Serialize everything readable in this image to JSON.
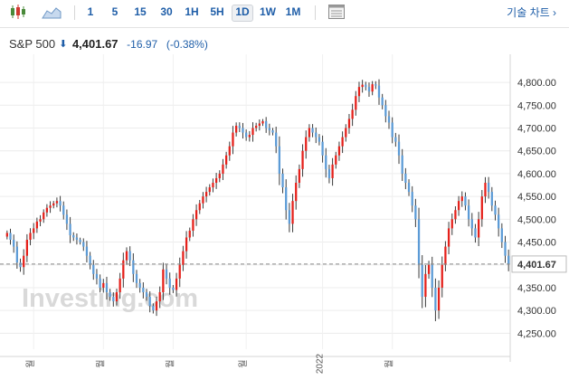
{
  "toolbar": {
    "timeframes": [
      "1",
      "5",
      "15",
      "30",
      "1H",
      "5H",
      "1D",
      "1W",
      "1M"
    ],
    "active_timeframe": "1D",
    "tech_chart_link": "기술 차트 ›"
  },
  "quote": {
    "name": "S&P 500",
    "direction_arrow": "⬇",
    "price": "4,401.67",
    "change": "-16.97",
    "change_pct": "(-0.38%)"
  },
  "watermark": "Investing.com",
  "colors": {
    "up": "#e5211b",
    "down": "#5c9bd6",
    "accent": "#1f5ea8"
  },
  "chart_data": {
    "type": "candlestick",
    "y_ticks": [
      4250,
      4300,
      4350,
      4400,
      4450,
      4500,
      4550,
      4600,
      4650,
      4700,
      4750,
      4800
    ],
    "y_tick_labels": [
      "4,250.00",
      "4,300.00",
      "4,350.00",
      "4,400.00",
      "4,450.00",
      "4,500.00",
      "4,550.00",
      "4,600.00",
      "4,650.00",
      "4,700.00",
      "4,750.00",
      "4,800.00"
    ],
    "ylim": [
      4215,
      4822
    ],
    "current_value": 4401.67,
    "current_label": "4,401.67",
    "x_labels": [
      {
        "index": 8,
        "label": "월"
      },
      {
        "index": 29,
        "label": "월"
      },
      {
        "index": 50,
        "label": "월"
      },
      {
        "index": 72,
        "label": "월"
      },
      {
        "index": 95,
        "label": "2022"
      },
      {
        "index": 116,
        "label": "월"
      }
    ],
    "closes": [
      4470,
      4455,
      4440,
      4405,
      4395,
      4420,
      4455,
      4470,
      4480,
      4495,
      4500,
      4515,
      4525,
      4530,
      4535,
      4540,
      4530,
      4510,
      4490,
      4465,
      4460,
      4455,
      4450,
      4440,
      4420,
      4400,
      4380,
      4370,
      4350,
      4360,
      4340,
      4330,
      4320,
      4340,
      4370,
      4410,
      4430,
      4410,
      4380,
      4360,
      4350,
      4340,
      4330,
      4310,
      4300,
      4320,
      4340,
      4390,
      4370,
      4350,
      4345,
      4370,
      4400,
      4430,
      4460,
      4475,
      4500,
      4520,
      4535,
      4550,
      4560,
      4570,
      4580,
      4590,
      4600,
      4620,
      4640,
      4660,
      4690,
      4705,
      4700,
      4690,
      4680,
      4685,
      4700,
      4705,
      4710,
      4715,
      4700,
      4695,
      4690,
      4660,
      4600,
      4570,
      4520,
      4490,
      4540,
      4580,
      4610,
      4650,
      4680,
      4700,
      4690,
      4680,
      4670,
      4640,
      4610,
      4590,
      4620,
      4640,
      4660,
      4680,
      4700,
      4720,
      4740,
      4770,
      4790,
      4795,
      4790,
      4780,
      4796,
      4793,
      4767,
      4750,
      4726,
      4712,
      4680,
      4670,
      4640,
      4600,
      4580,
      4560,
      4530,
      4500,
      4400,
      4330,
      4380,
      4400,
      4350,
      4300,
      4350,
      4400,
      4440,
      4480,
      4500,
      4520,
      4540,
      4550,
      4530,
      4500,
      4480,
      4460,
      4500,
      4550,
      4580,
      4560,
      4530,
      4510,
      4480,
      4450,
      4420,
      4401.67
    ]
  }
}
